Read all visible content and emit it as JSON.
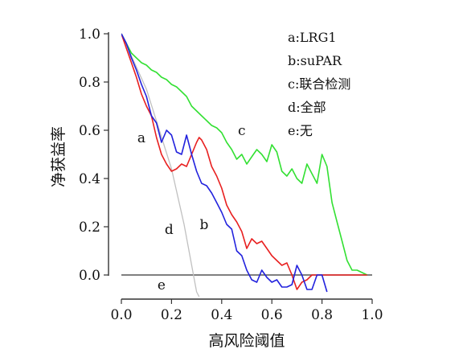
{
  "chart_data": {
    "type": "line",
    "title": "",
    "xlabel": "高风险阈值",
    "ylabel": "净获益率",
    "xlim": [
      0.0,
      1.0
    ],
    "ylim": [
      -0.09,
      1.0
    ],
    "x_ticks": [
      "0.0",
      "0.2",
      "0.4",
      "0.6",
      "0.8",
      "1.0"
    ],
    "y_ticks": [
      "0.0",
      "0.2",
      "0.4",
      "0.6",
      "0.8",
      "1.0"
    ],
    "x_tick_values": [
      0.0,
      0.2,
      0.4,
      0.6,
      0.8,
      1.0
    ],
    "y_tick_values": [
      0.0,
      0.2,
      0.4,
      0.6,
      0.8,
      1.0
    ],
    "grid": false,
    "legend_position": "top-right",
    "legend": [
      "a:LRG1",
      "b:suPAR",
      "c:联合检测",
      "d:全部",
      "e:无"
    ],
    "series": [
      {
        "name": "a",
        "label": "a",
        "color": "#e82020",
        "x": [
          0.0,
          0.02,
          0.04,
          0.06,
          0.08,
          0.1,
          0.12,
          0.14,
          0.16,
          0.18,
          0.2,
          0.22,
          0.24,
          0.26,
          0.28,
          0.3,
          0.31,
          0.32,
          0.34,
          0.36,
          0.38,
          0.4,
          0.42,
          0.44,
          0.46,
          0.48,
          0.5,
          0.52,
          0.54,
          0.56,
          0.58,
          0.6,
          0.62,
          0.64,
          0.66,
          0.68,
          0.7,
          0.72,
          0.74,
          0.76,
          0.78,
          0.8,
          0.82,
          0.84,
          0.86,
          0.88,
          0.9,
          0.92,
          0.94,
          0.96,
          0.98
        ],
        "values": [
          1.0,
          0.94,
          0.88,
          0.82,
          0.75,
          0.7,
          0.66,
          0.57,
          0.5,
          0.46,
          0.43,
          0.44,
          0.46,
          0.45,
          0.5,
          0.55,
          0.57,
          0.56,
          0.52,
          0.45,
          0.41,
          0.36,
          0.29,
          0.25,
          0.22,
          0.18,
          0.11,
          0.15,
          0.13,
          0.14,
          0.11,
          0.08,
          0.06,
          0.04,
          0.05,
          0.0,
          -0.06,
          -0.03,
          -0.02,
          0.0,
          0.0,
          0.0,
          0.0,
          0.0,
          0.0,
          0.0,
          0.0,
          0.0,
          0.0,
          0.0,
          0.0
        ]
      },
      {
        "name": "b",
        "label": "b",
        "color": "#2222dd",
        "x": [
          0.0,
          0.02,
          0.04,
          0.06,
          0.08,
          0.1,
          0.12,
          0.14,
          0.16,
          0.18,
          0.2,
          0.22,
          0.24,
          0.26,
          0.28,
          0.3,
          0.32,
          0.34,
          0.36,
          0.38,
          0.4,
          0.42,
          0.44,
          0.46,
          0.48,
          0.5,
          0.52,
          0.54,
          0.56,
          0.58,
          0.6,
          0.62,
          0.64,
          0.66,
          0.68,
          0.7,
          0.72,
          0.74,
          0.76,
          0.78,
          0.8,
          0.82
        ],
        "values": [
          1.0,
          0.96,
          0.9,
          0.85,
          0.79,
          0.74,
          0.66,
          0.63,
          0.55,
          0.6,
          0.58,
          0.51,
          0.5,
          0.58,
          0.5,
          0.43,
          0.38,
          0.37,
          0.34,
          0.3,
          0.26,
          0.21,
          0.19,
          0.1,
          0.08,
          0.02,
          -0.02,
          -0.03,
          0.02,
          -0.01,
          -0.03,
          -0.02,
          -0.05,
          -0.05,
          -0.04,
          0.04,
          0.0,
          -0.06,
          -0.06,
          0.0,
          0.0,
          -0.07
        ]
      },
      {
        "name": "c",
        "label": "c",
        "color": "#33e033",
        "x": [
          0.0,
          0.02,
          0.04,
          0.06,
          0.08,
          0.1,
          0.12,
          0.14,
          0.16,
          0.18,
          0.2,
          0.22,
          0.24,
          0.26,
          0.28,
          0.3,
          0.32,
          0.34,
          0.36,
          0.38,
          0.4,
          0.42,
          0.44,
          0.46,
          0.48,
          0.5,
          0.52,
          0.54,
          0.56,
          0.58,
          0.6,
          0.62,
          0.64,
          0.66,
          0.68,
          0.7,
          0.72,
          0.74,
          0.76,
          0.78,
          0.8,
          0.82,
          0.84,
          0.86,
          0.88,
          0.9,
          0.92,
          0.94,
          0.96,
          0.98
        ],
        "values": [
          1.0,
          0.96,
          0.92,
          0.9,
          0.88,
          0.87,
          0.85,
          0.84,
          0.82,
          0.81,
          0.79,
          0.78,
          0.76,
          0.74,
          0.7,
          0.68,
          0.66,
          0.64,
          0.62,
          0.61,
          0.59,
          0.55,
          0.52,
          0.48,
          0.5,
          0.46,
          0.49,
          0.52,
          0.5,
          0.47,
          0.54,
          0.51,
          0.43,
          0.41,
          0.44,
          0.4,
          0.38,
          0.46,
          0.42,
          0.38,
          0.5,
          0.45,
          0.3,
          0.22,
          0.14,
          0.06,
          0.02,
          0.02,
          0.01,
          0.0
        ]
      },
      {
        "name": "d",
        "label": "d",
        "color": "#c0c0c0",
        "x": [
          0.0,
          0.1,
          0.2,
          0.25,
          0.3,
          0.31
        ],
        "values": [
          1.0,
          0.77,
          0.44,
          0.21,
          -0.07,
          -0.09
        ]
      },
      {
        "name": "e",
        "label": "e",
        "color": "#555555",
        "x": [
          0.0,
          1.0
        ],
        "values": [
          0.0,
          0.0
        ]
      }
    ],
    "curve_labels": [
      {
        "text": "a",
        "x": 0.08,
        "y": 0.55
      },
      {
        "text": "b",
        "x": 0.33,
        "y": 0.19
      },
      {
        "text": "c",
        "x": 0.48,
        "y": 0.58
      },
      {
        "text": "d",
        "x": 0.19,
        "y": 0.17
      },
      {
        "text": "e",
        "x": 0.16,
        "y": -0.06
      }
    ]
  }
}
